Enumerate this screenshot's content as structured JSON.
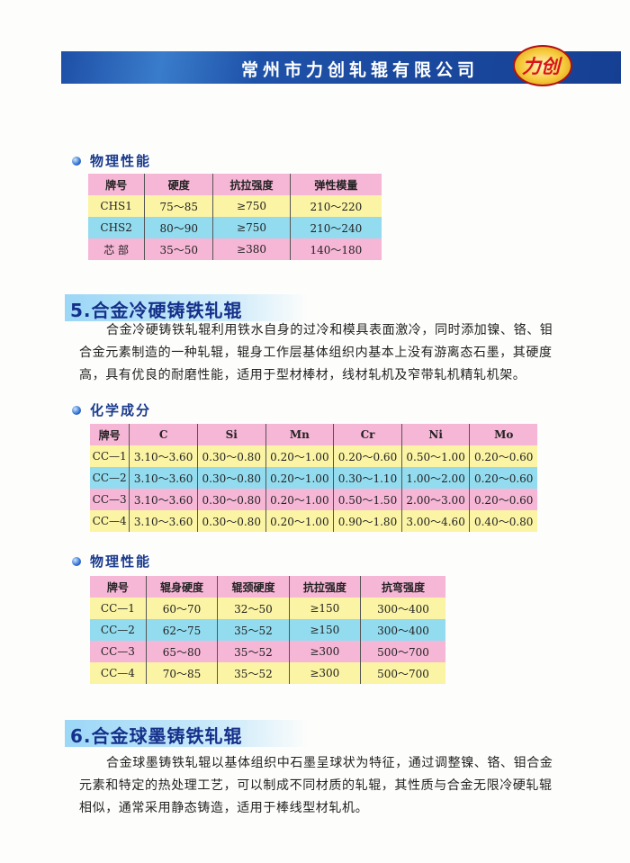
{
  "header": {
    "company": "常州市力创轧辊有限公司",
    "logo_text": "力创"
  },
  "colors": {
    "pink": "#f6b6d6",
    "yellow": "#fbf4a4",
    "cyan": "#93dcef",
    "heading": "#15308a",
    "banner": "#1a4aa0"
  },
  "phys1": {
    "heading": "物理性能",
    "columns": [
      "牌号",
      "硬度",
      "抗拉强度",
      "弹性模量"
    ],
    "rows": [
      [
        "CHS1",
        "75～85",
        "≥750",
        "210～220"
      ],
      [
        "CHS2",
        "80～90",
        "≥750",
        "210～240"
      ],
      [
        "芯 部",
        "35～50",
        "≥380",
        "140～180"
      ]
    ]
  },
  "section5": {
    "title": "5.合金冷硬铸铁轧辊",
    "lines": [
      "合金冷硬铸铁轧辊利用铁水自身的过冷和模具表面激冷，同时添加镍、铬、钼",
      "合金元素制造的一种轧辊，辊身工作层基体组织内基本上没有游离态石墨，其硬度",
      "高，具有优良的耐磨性能，适用于型材棒材，线材轧机及窄带轧机精轧机架。"
    ]
  },
  "chem": {
    "heading": "化学成分",
    "columns": [
      "牌号",
      "C",
      "Si",
      "Mn",
      "Cr",
      "Ni",
      "Mo"
    ],
    "rows": [
      [
        "CC—1",
        "3.10～3.60",
        "0.30～0.80",
        "0.20～1.00",
        "0.20～0.60",
        "0.50～1.00",
        "0.20～0.60"
      ],
      [
        "CC—2",
        "3.10～3.60",
        "0.30～0.80",
        "0.20～1.00",
        "0.30～1.10",
        "1.00～2.00",
        "0.20～0.60"
      ],
      [
        "CC—3",
        "3.10～3.60",
        "0.30～0.80",
        "0.20～1.00",
        "0.50～1.50",
        "2.00～3.00",
        "0.20～0.60"
      ],
      [
        "CC—4",
        "3.10～3.60",
        "0.30～0.80",
        "0.20～1.00",
        "0.90～1.80",
        "3.00～4.60",
        "0.40～0.80"
      ]
    ]
  },
  "phys2": {
    "heading": "物理性能",
    "columns": [
      "牌号",
      "辊身硬度",
      "辊颈硬度",
      "抗拉强度",
      "抗弯强度"
    ],
    "rows": [
      [
        "CC—1",
        "60～70",
        "32～50",
        "≥150",
        "300～400"
      ],
      [
        "CC—2",
        "62～75",
        "35～52",
        "≥150",
        "300～400"
      ],
      [
        "CC—3",
        "65～80",
        "35～52",
        "≥300",
        "500～700"
      ],
      [
        "CC—4",
        "70～85",
        "35～52",
        "≥300",
        "500～700"
      ]
    ]
  },
  "section6": {
    "title": "6.合金球墨铸铁轧辊",
    "lines": [
      "合金球墨铸铁轧辊以基体组织中石墨呈球状为特征，通过调整镍、铬、钼合金",
      "元素和特定的热处理工艺，可以制成不同材质的轧辊，其性质与合金无限冷硬轧辊",
      "相似，通常采用静态铸造，适用于棒线型材轧机。"
    ]
  }
}
